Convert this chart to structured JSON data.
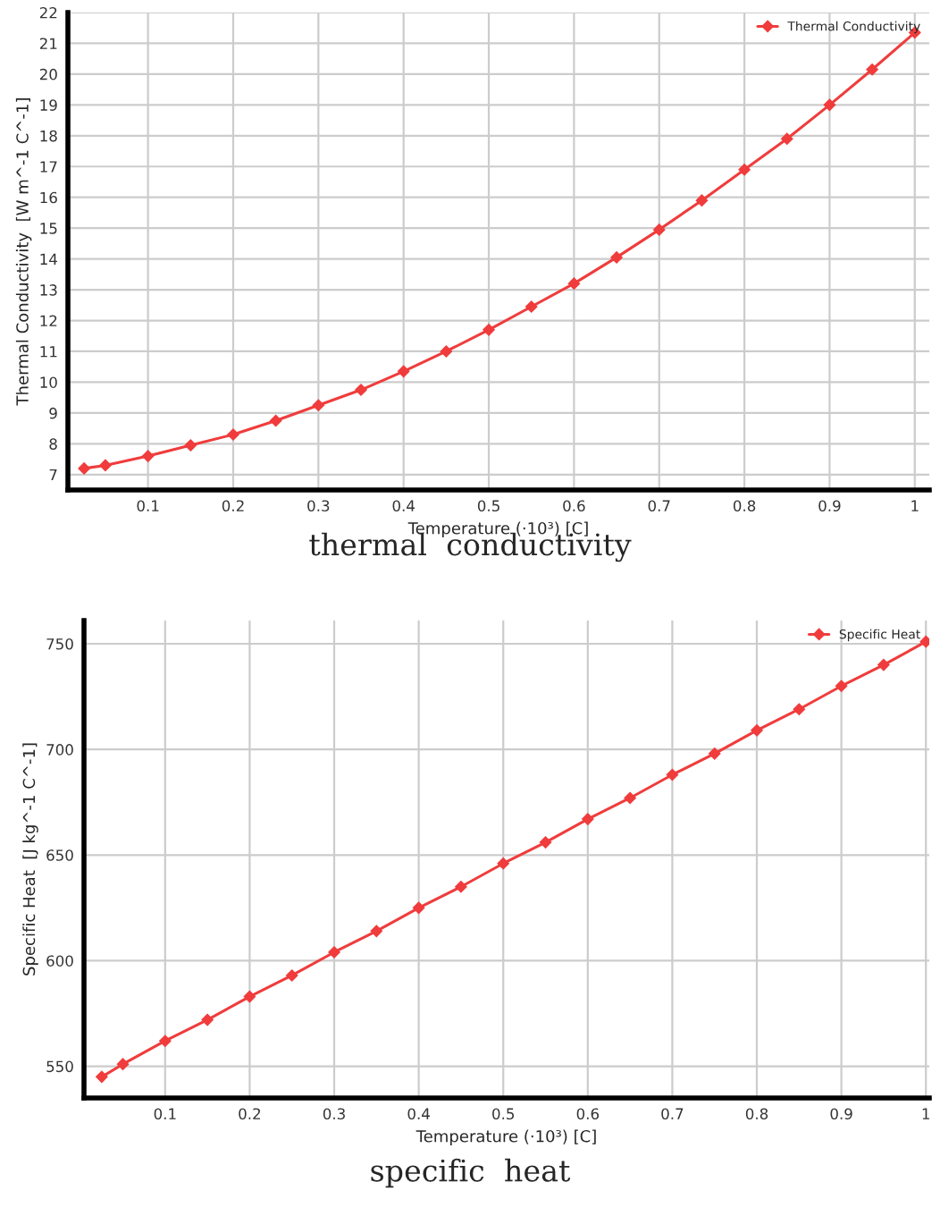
{
  "chart_data": [
    {
      "type": "line",
      "xlabel": "Temperature (·10³) [C]",
      "ylabel": "Thermal Conductivity  [W m^-1 C^-1]",
      "annotations": [
        "thermal  conductivity"
      ],
      "x": [
        0.025,
        0.05,
        0.1,
        0.15,
        0.2,
        0.25,
        0.3,
        0.35,
        0.4,
        0.45,
        0.5,
        0.55,
        0.6,
        0.65,
        0.7,
        0.75,
        0.8,
        0.85,
        0.9,
        0.95,
        1.0
      ],
      "series": [
        {
          "name": "Thermal Conductivity",
          "color": "#f03c3c",
          "values": [
            7.2,
            7.3,
            7.6,
            7.95,
            8.3,
            8.75,
            9.25,
            9.75,
            10.35,
            11.0,
            11.7,
            12.45,
            13.2,
            14.05,
            14.95,
            15.9,
            16.9,
            17.9,
            19.0,
            20.15,
            21.35
          ]
        }
      ],
      "xlim": [
        0.006,
        1.017
      ],
      "ylim": [
        6.5,
        22
      ],
      "xticks": [
        0.1,
        0.2,
        0.3,
        0.4,
        0.5,
        0.6,
        0.7,
        0.8,
        0.9,
        1
      ],
      "yticks": [
        7,
        8,
        9,
        10,
        11,
        12,
        13,
        14,
        15,
        16,
        17,
        18,
        19,
        20,
        21,
        22
      ],
      "grid": true,
      "legend": "top right",
      "marker": "diamond",
      "line_style": "solid"
    },
    {
      "type": "line",
      "xlabel": "Temperature (·10³) [C]",
      "ylabel": "Specific Heat  [J kg^-1 C^-1]",
      "annotations": [
        "specific  heat"
      ],
      "x": [
        0.025,
        0.05,
        0.1,
        0.15,
        0.2,
        0.25,
        0.3,
        0.35,
        0.4,
        0.45,
        0.5,
        0.55,
        0.6,
        0.65,
        0.7,
        0.75,
        0.8,
        0.85,
        0.9,
        0.95,
        1.0
      ],
      "series": [
        {
          "name": "Specific Heat",
          "color": "#f03c3c",
          "values": [
            545,
            551,
            562,
            572,
            583,
            593,
            604,
            614,
            625,
            635,
            646,
            656,
            667,
            677,
            688,
            698,
            709,
            719,
            730,
            740,
            751
          ]
        }
      ],
      "xlim": [
        0.004,
        1.004
      ],
      "ylim": [
        535,
        761
      ],
      "xticks": [
        0.1,
        0.2,
        0.3,
        0.4,
        0.5,
        0.6,
        0.7,
        0.8,
        0.9,
        1
      ],
      "yticks": [
        550,
        600,
        650,
        700,
        750
      ],
      "grid": true,
      "legend": "top right",
      "marker": "diamond",
      "line_style": "solid"
    }
  ]
}
